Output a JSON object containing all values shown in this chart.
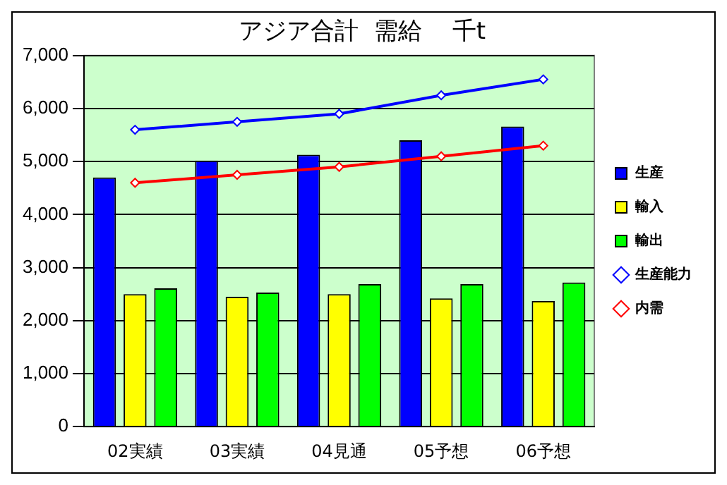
{
  "chart_data": {
    "type": "bar",
    "title": "アジア合計  需給    千t",
    "categories": [
      "02実績",
      "03実績",
      "04見通",
      "05予想",
      "06予想"
    ],
    "series": [
      {
        "name": "生産",
        "color": "#0000ff",
        "values": [
          4700,
          5020,
          5130,
          5400,
          5660
        ]
      },
      {
        "name": "輸入",
        "color": "#ffff00",
        "values": [
          2500,
          2450,
          2500,
          2420,
          2370
        ]
      },
      {
        "name": "輸出",
        "color": "#00ff00",
        "values": [
          2610,
          2530,
          2690,
          2690,
          2720
        ]
      },
      {
        "name": "生産能力",
        "type": "line",
        "color": "#0000ff",
        "values": [
          5600,
          5750,
          5900,
          6250,
          6550
        ]
      },
      {
        "name": "内需",
        "type": "line",
        "color": "#ff0000",
        "values": [
          4600,
          4750,
          4900,
          5100,
          5300
        ]
      }
    ],
    "ylim": [
      0,
      7000
    ],
    "yticks": [
      0,
      {
        "value": 1000,
        "label": "1,000"
      },
      {
        "value": 2000,
        "label": "2,000"
      },
      {
        "value": 3000,
        "label": "3,000"
      },
      {
        "value": 4000,
        "label": "4,000"
      },
      {
        "value": 5000,
        "label": "5,000"
      },
      {
        "value": 6000,
        "label": "6,000"
      },
      {
        "value": 7000,
        "label": "7,000"
      }
    ],
    "grid": "y",
    "legend": "right",
    "marker": "diamond"
  }
}
